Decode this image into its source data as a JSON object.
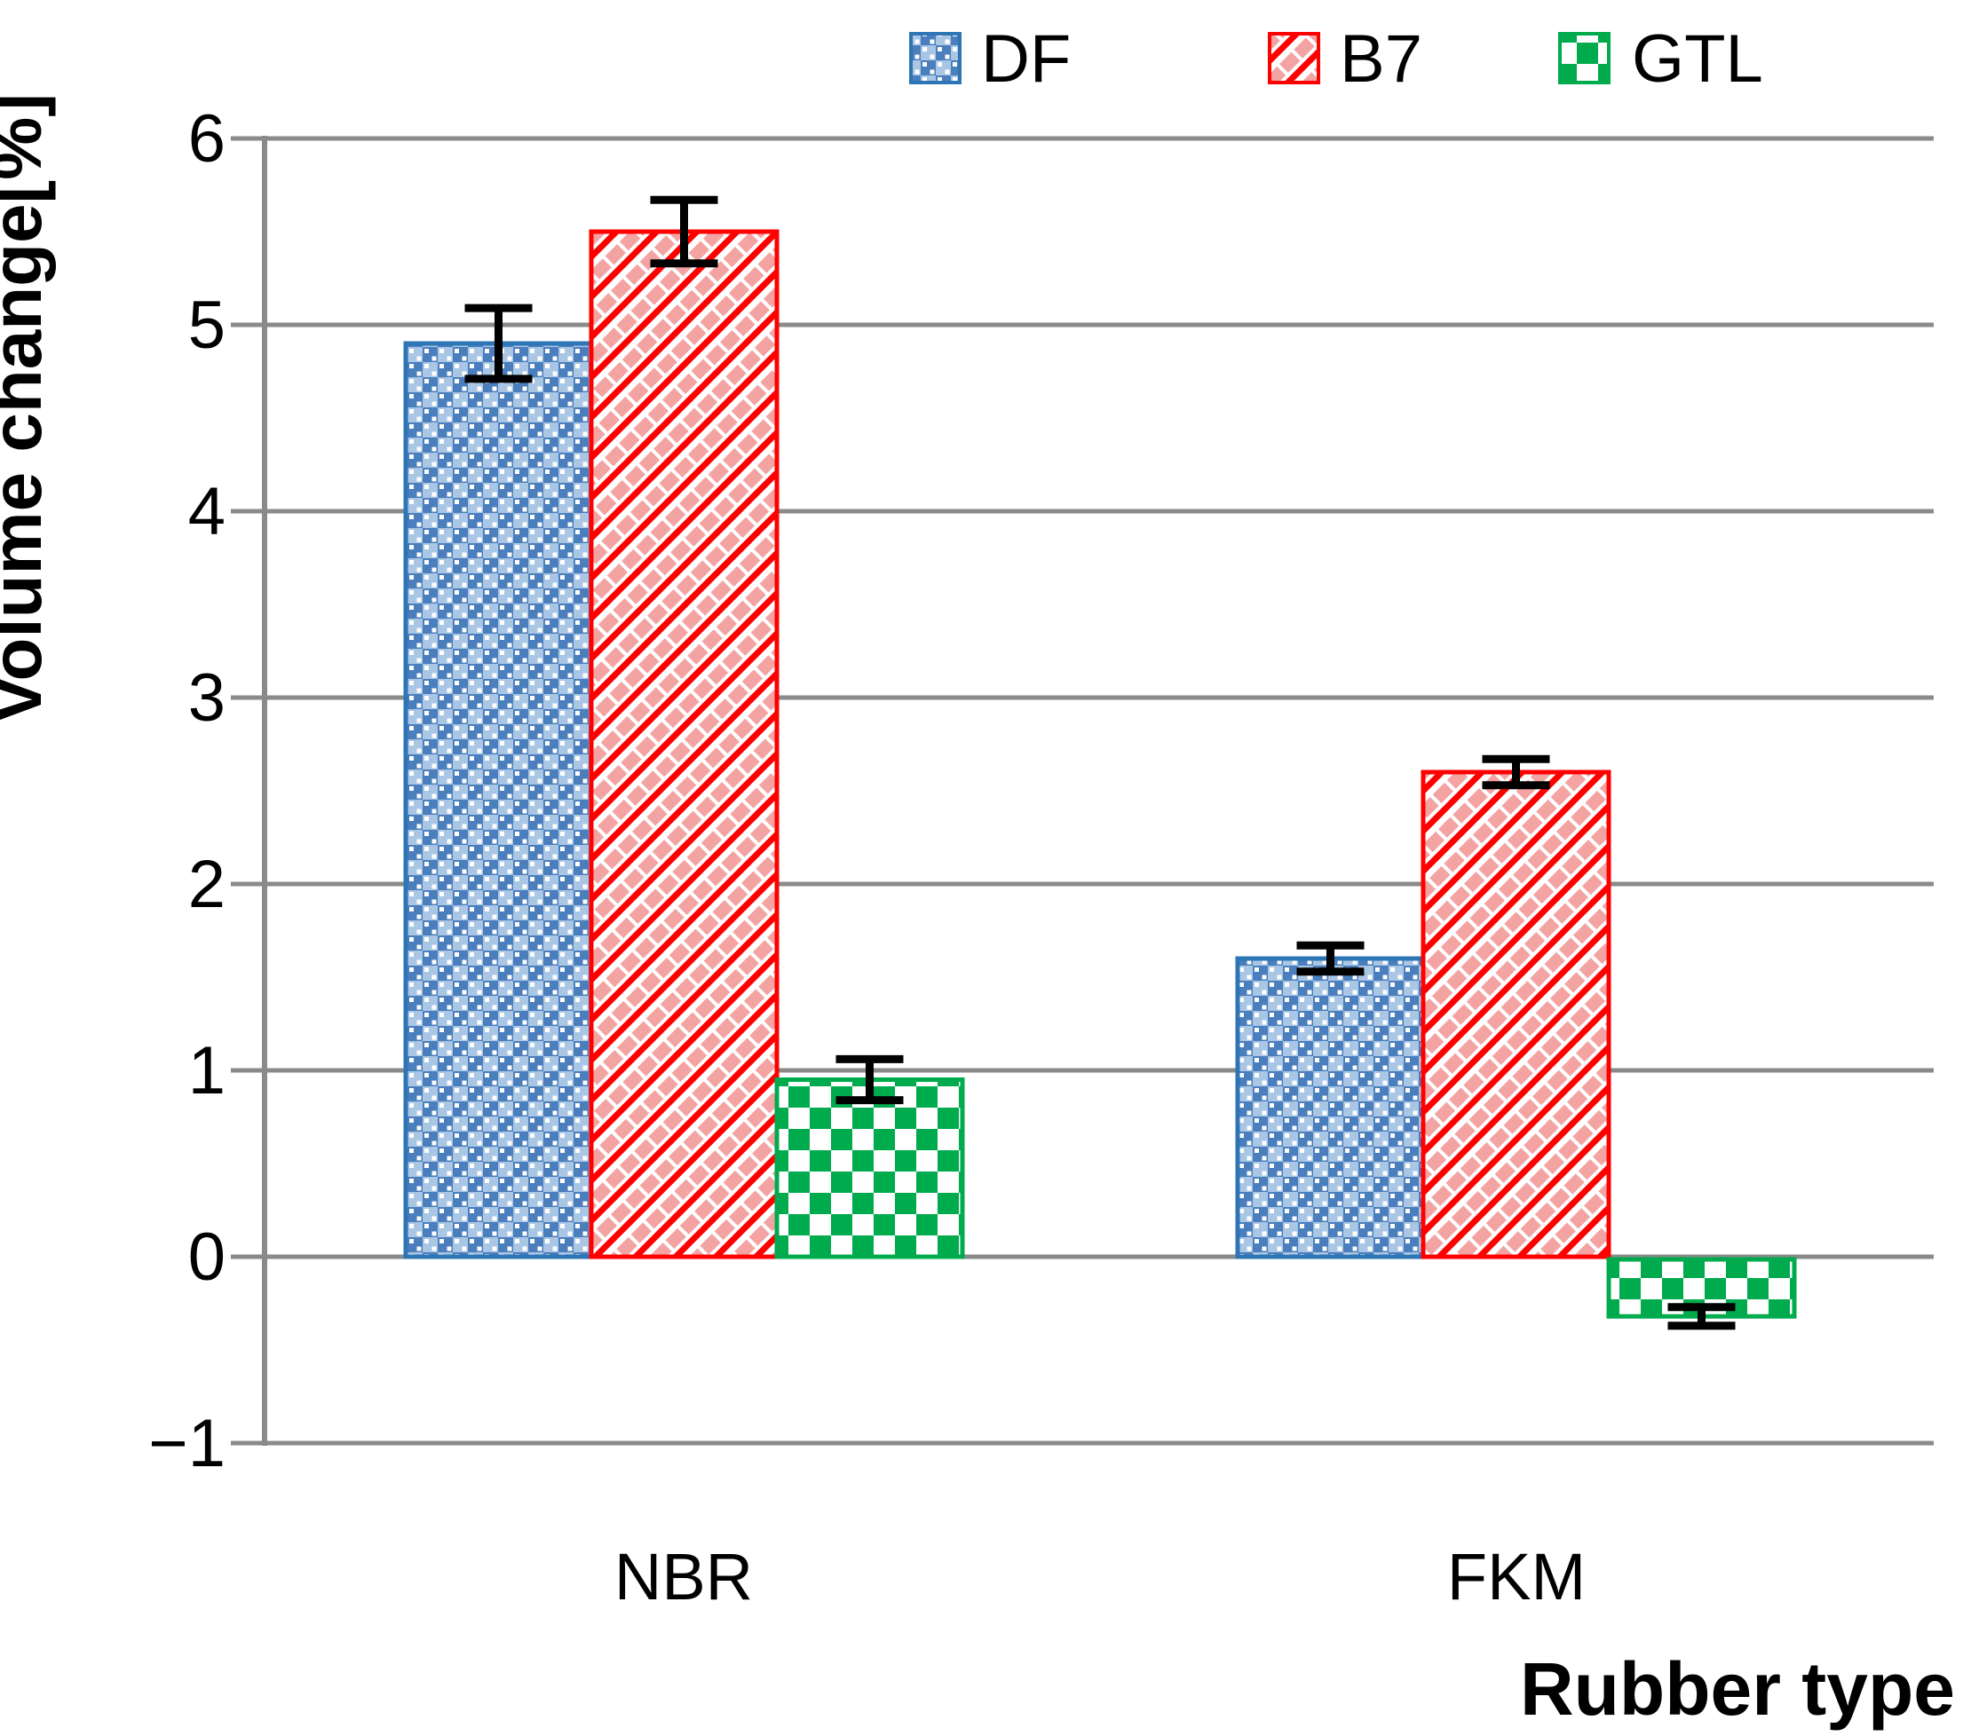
{
  "chart_data": {
    "type": "bar",
    "title": "",
    "xlabel": "Rubber type",
    "ylabel": "Volume change[%]",
    "categories": [
      "NBR",
      "FKM"
    ],
    "series": [
      {
        "name": "DF",
        "color": "#2e75b6",
        "pattern_style": "blue-dotted-weave",
        "pattern": {
          "base": "#4a7ebc",
          "light": "#a9c6e5",
          "dot": "#ffffff"
        },
        "values": [
          4.9,
          1.6
        ],
        "errors": [
          0.19,
          0.07
        ]
      },
      {
        "name": "B7",
        "color": "#ff0000",
        "pattern_style": "red-diagonal-weave",
        "pattern": {
          "bg": "#ffffff",
          "line": "#ff0000",
          "dash": "#f4a3a3"
        },
        "values": [
          5.5,
          2.6
        ],
        "errors": [
          0.17,
          0.07
        ]
      },
      {
        "name": "GTL",
        "color": "#00ab4e",
        "pattern_style": "green-checkerboard",
        "pattern": {
          "bg": "#ffffff",
          "check": "#00ab4e"
        },
        "values": [
          0.95,
          -0.32
        ],
        "errors": [
          0.11,
          0.05
        ]
      }
    ],
    "ylim": [
      -1,
      6
    ],
    "ytick_values": [
      6,
      5,
      4,
      3,
      2,
      1,
      0,
      -1
    ],
    "ytick_labels": [
      "6",
      "5",
      "4",
      "3",
      "2",
      "1",
      "0",
      "−1"
    ],
    "grid": true,
    "gridline_color": "#8a8a8a",
    "error_bar_color": "#000000",
    "legend_position": "top"
  }
}
